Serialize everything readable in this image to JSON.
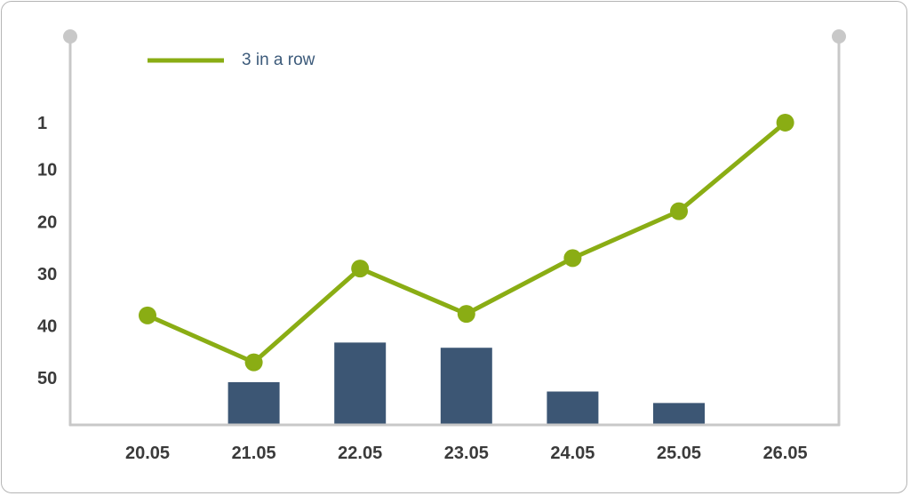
{
  "chart_data": {
    "type": "bar+line",
    "categories": [
      "20.05",
      "21.05",
      "22.05",
      "23.05",
      "24.05",
      "25.05",
      "26.05"
    ],
    "y_tick_labels": [
      "1",
      "10",
      "20",
      "30",
      "40",
      "50"
    ],
    "y_ticks": [
      1,
      10,
      20,
      30,
      40,
      50
    ],
    "y_axis_inverted": true,
    "ylim": [
      -14,
      59
    ],
    "series": [
      {
        "name": "3 in a row",
        "type": "line",
        "color": "#8aad14",
        "values": [
          38,
          47,
          29,
          37.7,
          27,
          18,
          1
        ]
      },
      {
        "type": "bar",
        "color": "#3c5674",
        "values": [
          null,
          50.8,
          43.2,
          44.2,
          52.6,
          54.8,
          null
        ]
      }
    ],
    "legend": {
      "position": "top-left"
    },
    "grid": false,
    "axis_color": "#c8c8c8"
  }
}
